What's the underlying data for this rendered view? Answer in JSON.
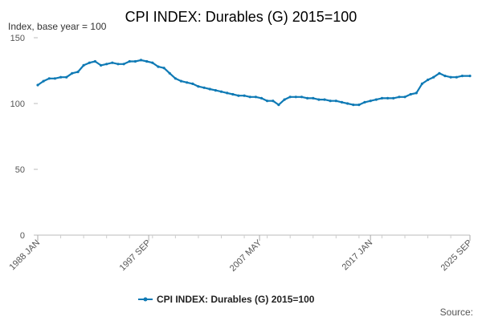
{
  "chart_data": {
    "type": "line",
    "title": "CPI INDEX: Durables (G) 2015=100",
    "subtitle": "Index, base year = 100",
    "ylim": [
      0,
      150
    ],
    "yticks": [
      0,
      50,
      100,
      150
    ],
    "ytick_labels": [
      "0",
      "50",
      "100",
      "150"
    ],
    "xlim": [
      1988.0,
      2025.67
    ],
    "xticks": [
      {
        "x": 1988.0,
        "label": "1988 JAN"
      },
      {
        "x": 1997.67,
        "label": "1997 SEP"
      },
      {
        "x": 2007.33,
        "label": "2007 MAY"
      },
      {
        "x": 2017.0,
        "label": "2017 JAN"
      },
      {
        "x": 2025.67,
        "label": "2025 SEP"
      }
    ],
    "grid": false,
    "legend_position": "bottom",
    "series": [
      {
        "name": "CPI INDEX: Durables (G) 2015=100",
        "color": "#0f7ab5",
        "x": [
          1988.0,
          1988.5,
          1989.0,
          1989.5,
          1990.0,
          1990.5,
          1991.0,
          1991.5,
          1992.0,
          1992.5,
          1993.0,
          1993.5,
          1994.0,
          1994.5,
          1995.0,
          1995.5,
          1996.0,
          1996.5,
          1997.0,
          1997.5,
          1998.0,
          1998.5,
          1999.0,
          1999.5,
          2000.0,
          2000.5,
          2001.0,
          2001.5,
          2002.0,
          2002.5,
          2003.0,
          2003.5,
          2004.0,
          2004.5,
          2005.0,
          2005.5,
          2006.0,
          2006.5,
          2007.0,
          2007.5,
          2008.0,
          2008.5,
          2009.0,
          2009.5,
          2010.0,
          2010.5,
          2011.0,
          2011.5,
          2012.0,
          2012.5,
          2013.0,
          2013.5,
          2014.0,
          2014.5,
          2015.0,
          2015.5,
          2016.0,
          2016.5,
          2017.0,
          2017.5,
          2018.0,
          2018.5,
          2019.0,
          2019.5,
          2020.0,
          2020.5,
          2021.0,
          2021.5,
          2022.0,
          2022.5,
          2023.0,
          2023.5,
          2024.0,
          2024.5,
          2025.0,
          2025.67
        ],
        "y": [
          114,
          117,
          119,
          119,
          120,
          120,
          123,
          124,
          129,
          131,
          132,
          129,
          130,
          131,
          130,
          130,
          132,
          132,
          133,
          132,
          131,
          128,
          127,
          123,
          119,
          117,
          116,
          115,
          113,
          112,
          111,
          110,
          109,
          108,
          107,
          106,
          106,
          105,
          105,
          104,
          102,
          102,
          99,
          103,
          105,
          105,
          105,
          104,
          104,
          103,
          103,
          102,
          102,
          101,
          100,
          99,
          99,
          101,
          102,
          103,
          104,
          104,
          104,
          105,
          105,
          107,
          108,
          115,
          118,
          120,
          123,
          121,
          120,
          120,
          121,
          121
        ]
      }
    ]
  },
  "legend": {
    "label": "CPI INDEX: Durables (G) 2015=100"
  },
  "footer": {
    "source_label": "Source:"
  }
}
